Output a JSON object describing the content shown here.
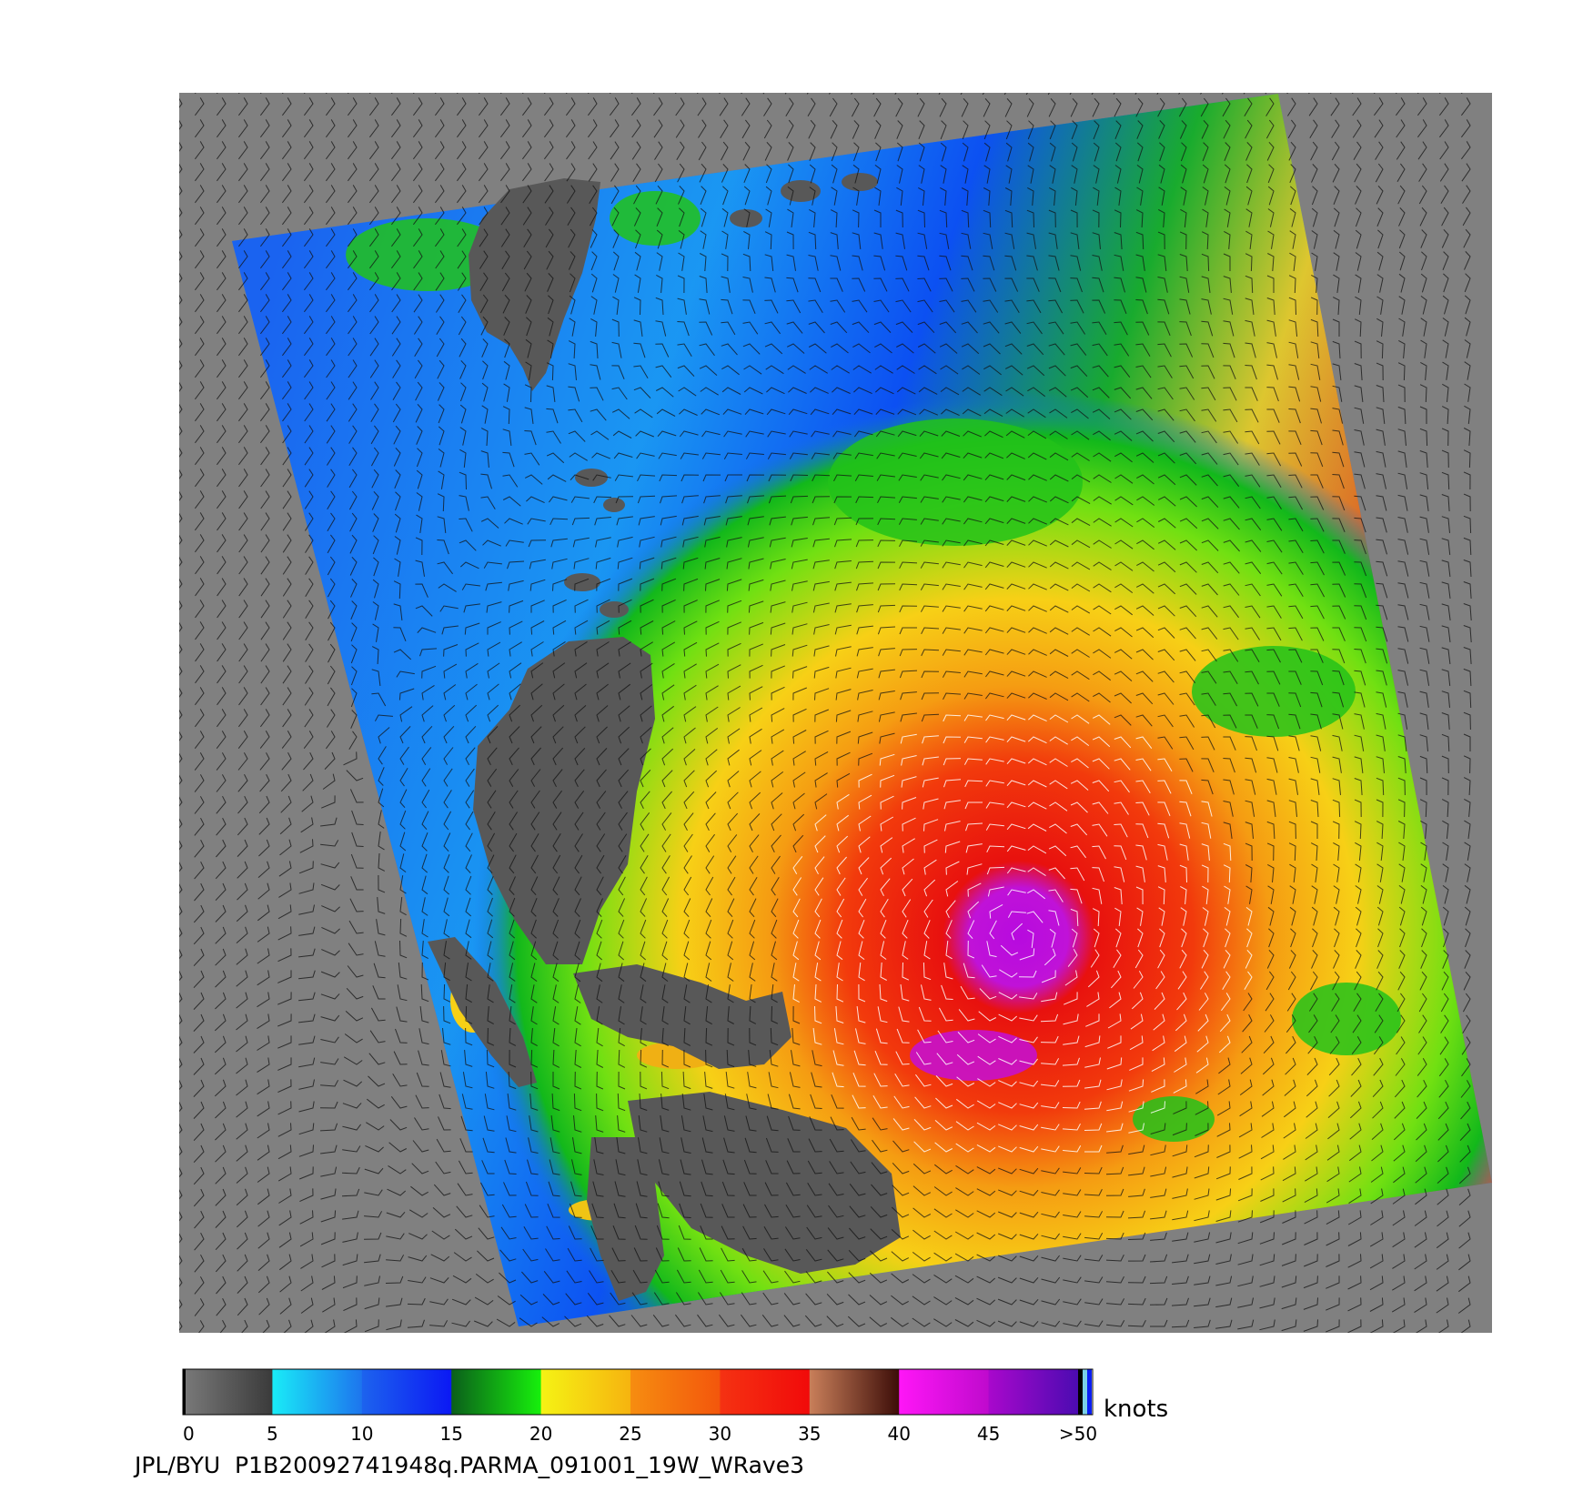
{
  "image": {
    "background_color": "#ffffff",
    "map_background": "#808080",
    "land_color": "#585858",
    "wind_barb_dark": "#111111",
    "wind_barb_light": "#ffffff"
  },
  "colorbar": {
    "units_label": "knots",
    "tick_labels": [
      "0",
      "5",
      "10",
      "15",
      "20",
      "25",
      "30",
      "35",
      "40",
      "45",
      ">50"
    ],
    "segments": [
      {
        "from": "#7a7a7a",
        "to": "#3a3a3a"
      },
      {
        "from": "#19ecf7",
        "to": "#1d74ee"
      },
      {
        "from": "#1d63ee",
        "to": "#0b18f4"
      },
      {
        "from": "#0b5f1b",
        "to": "#17f10c"
      },
      {
        "from": "#f5f314",
        "to": "#f6b30f"
      },
      {
        "from": "#f68d10",
        "to": "#f3560c"
      },
      {
        "from": "#f53212",
        "to": "#f10a0a"
      },
      {
        "from": "#c97f5a",
        "to": "#3c0d08"
      },
      {
        "from": "#ff16f7",
        "to": "#bf0acd"
      },
      {
        "from": "#a908cc",
        "to": "#4b0bb1"
      }
    ]
  },
  "footer": {
    "caption": "JPL/BYU  P1B20092741948q.PARMA_091001_19W_WRave3"
  }
}
